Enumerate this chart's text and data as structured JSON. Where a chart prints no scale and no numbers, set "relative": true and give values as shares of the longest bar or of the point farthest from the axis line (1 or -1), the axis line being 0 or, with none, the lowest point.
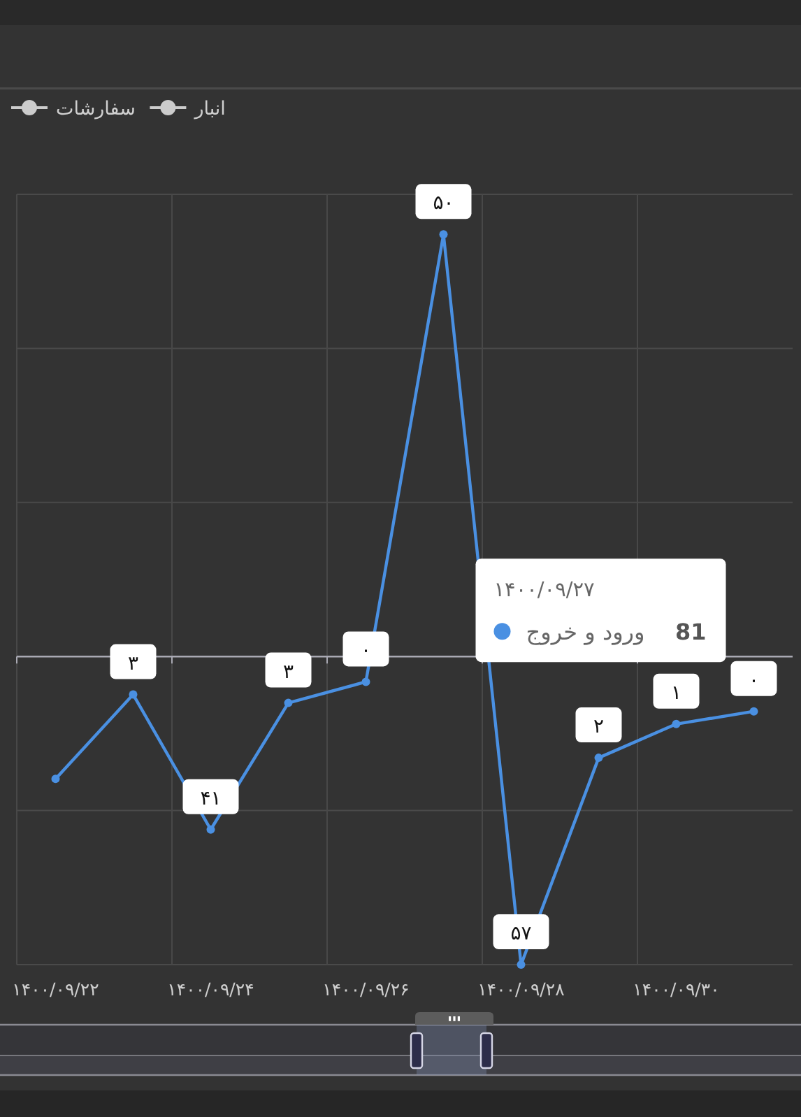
{
  "chart_data": {
    "type": "line",
    "categories": [
      "۱۴۰۰/۰۹/۲۲",
      null,
      "۱۴۰۰/۰۹/۲۴",
      null,
      "۱۴۰۰/۰۹/۲۶",
      null,
      "۱۴۰۰/۰۹/۲۸",
      null,
      "۱۴۰۰/۰۹/۳۰",
      null
    ],
    "series": [
      {
        "name": "ورود و خروج",
        "color": "#4a90e2",
        "values": [
          -0.29,
          -0.09,
          -0.41,
          -0.11,
          -0.06,
          1,
          -0.73,
          -0.24,
          -0.16,
          -0.13
        ]
      },
      {
        "name": "سفارشات",
        "color": "#cccccc",
        "values": [
          null,
          null,
          null,
          null,
          null,
          null,
          null,
          null,
          null,
          null
        ]
      },
      {
        "name": "انبار",
        "color": "#cccccc",
        "values": [
          null,
          null,
          null,
          null,
          null,
          null,
          null,
          null,
          null,
          null
        ]
      }
    ],
    "relative": true,
    "tick_labels": "x",
    "grid": true,
    "legend": "top left",
    "marker": "circle",
    "annotations": [
      "۱۴۰۰/۰۹/۲۷",
      "81",
      {
        "text": "۳",
        "y": -0.11
      },
      {
        "text": "۳",
        "y": -0.09
      },
      {
        "text": "۴۱",
        "y": -0.41
      },
      {
        "text": "۰",
        "y": -0.13
      },
      {
        "text": "۰",
        "y": -0.06
      },
      {
        "text": "۵۰",
        "y": 1
      },
      {
        "text": "۵۷",
        "y": -0.73
      },
      {
        "text": "۲",
        "y": -0.24
      },
      {
        "text": "۱",
        "y": -0.16
      }
    ]
  }
}
